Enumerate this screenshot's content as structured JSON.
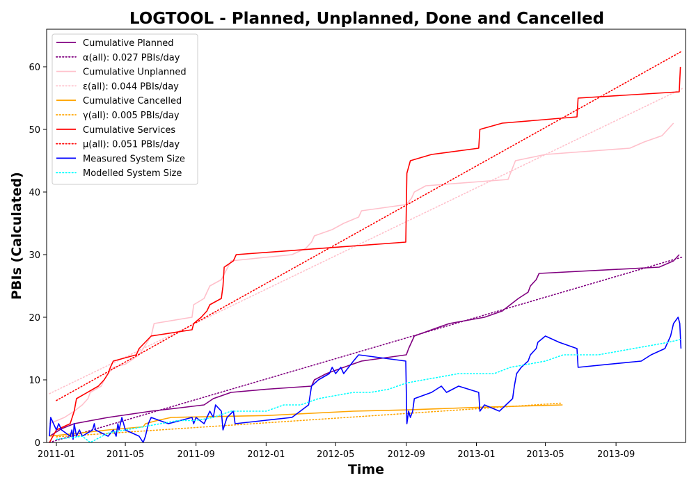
{
  "chart_data": {
    "type": "line",
    "title": "LOGTOOL - Planned, Unplanned, Done  and Cancelled",
    "xlabel": "Time",
    "ylabel": "PBIs (Calculated)",
    "xlim": [
      "2010-12-15",
      "2013-12-31"
    ],
    "ylim": [
      0,
      66
    ],
    "x_ticks": [
      "2011-01",
      "2011-05",
      "2011-09",
      "2012-01",
      "2012-05",
      "2012-09",
      "2013-01",
      "2013-05",
      "2013-09"
    ],
    "y_ticks": [
      0,
      10,
      20,
      30,
      40,
      50,
      60
    ],
    "grid": false,
    "legend_position": "top-left",
    "series": [
      {
        "name": "Cumulative Planned",
        "style": "solid",
        "color": "#800080",
        "points": [
          [
            "2010-12-20",
            1
          ],
          [
            "2011-01-10",
            2.2
          ],
          [
            "2011-02-01",
            3
          ],
          [
            "2011-04-01",
            4
          ],
          [
            "2011-06-15",
            5
          ],
          [
            "2011-08-01",
            5.5
          ],
          [
            "2011-09-15",
            6
          ],
          [
            "2011-10-01",
            7
          ],
          [
            "2011-11-01",
            8
          ],
          [
            "2012-01-01",
            8.5
          ],
          [
            "2012-03-20",
            9
          ],
          [
            "2012-03-25",
            10
          ],
          [
            "2012-04-15",
            11
          ],
          [
            "2012-05-15",
            12
          ],
          [
            "2012-06-15",
            13
          ],
          [
            "2012-09-01",
            14
          ],
          [
            "2012-09-05",
            15
          ],
          [
            "2012-09-15",
            17
          ],
          [
            "2012-10-15",
            18
          ],
          [
            "2012-11-15",
            19
          ],
          [
            "2013-01-15",
            20
          ],
          [
            "2013-02-15",
            21
          ],
          [
            "2013-03-01",
            22
          ],
          [
            "2013-03-15",
            23
          ],
          [
            "2013-04-01",
            24
          ],
          [
            "2013-04-05",
            25
          ],
          [
            "2013-04-15",
            26
          ],
          [
            "2013-04-20",
            27
          ],
          [
            "2013-11-15",
            28
          ],
          [
            "2013-12-10",
            29
          ],
          [
            "2013-12-20",
            30
          ]
        ]
      },
      {
        "name": "α(all): 0.027 PBIs/day",
        "style": "dotted",
        "color": "#800080",
        "points": [
          [
            "2010-12-20",
            -0.3
          ],
          [
            "2013-12-25",
            29.6
          ]
        ]
      },
      {
        "name": "Cumulative Unplanned",
        "style": "solid",
        "color": "#ffc0cb",
        "points": [
          [
            "2010-12-20",
            3
          ],
          [
            "2011-01-15",
            4
          ],
          [
            "2011-02-01",
            5
          ],
          [
            "2011-02-15",
            6
          ],
          [
            "2011-02-25",
            7
          ],
          [
            "2011-03-01",
            8
          ],
          [
            "2011-03-20",
            9
          ],
          [
            "2011-03-25",
            10
          ],
          [
            "2011-04-01",
            11
          ],
          [
            "2011-04-10",
            12
          ],
          [
            "2011-05-01",
            12.5
          ],
          [
            "2011-05-25",
            14
          ],
          [
            "2011-06-01",
            15
          ],
          [
            "2011-06-15",
            17
          ],
          [
            "2011-06-20",
            19
          ],
          [
            "2011-08-25",
            20
          ],
          [
            "2011-08-28",
            22
          ],
          [
            "2011-09-15",
            23
          ],
          [
            "2011-09-25",
            25
          ],
          [
            "2011-10-15",
            26
          ],
          [
            "2011-11-01",
            29
          ],
          [
            "2012-02-15",
            30
          ],
          [
            "2012-03-10",
            31
          ],
          [
            "2012-03-20",
            32
          ],
          [
            "2012-03-25",
            33
          ],
          [
            "2012-04-25",
            34
          ],
          [
            "2012-05-15",
            35
          ],
          [
            "2012-06-10",
            36
          ],
          [
            "2012-06-15",
            37
          ],
          [
            "2012-09-01",
            38
          ],
          [
            "2012-09-10",
            39
          ],
          [
            "2012-09-15",
            40
          ],
          [
            "2012-10-05",
            41
          ],
          [
            "2013-02-25",
            42
          ],
          [
            "2013-03-10",
            45
          ],
          [
            "2013-05-01",
            46
          ],
          [
            "2013-09-25",
            47
          ],
          [
            "2013-10-20",
            48
          ],
          [
            "2013-11-20",
            49
          ],
          [
            "2013-12-10",
            51
          ]
        ]
      },
      {
        "name": "ε(all): 0.044 PBIs/day",
        "style": "dotted",
        "color": "#ffc0cb",
        "points": [
          [
            "2010-12-20",
            7.8
          ],
          [
            "2013-12-25",
            56.5
          ]
        ]
      },
      {
        "name": "Cumulative Cancelled",
        "style": "solid",
        "color": "#ffa500",
        "points": [
          [
            "2010-12-20",
            1
          ],
          [
            "2011-01-10",
            1.2
          ],
          [
            "2011-02-10",
            1.5
          ],
          [
            "2011-04-01",
            2
          ],
          [
            "2011-06-01",
            2.5
          ],
          [
            "2011-06-05",
            3
          ],
          [
            "2011-06-25",
            3.5
          ],
          [
            "2011-07-20",
            4
          ],
          [
            "2012-01-01",
            4.3
          ],
          [
            "2012-06-01",
            5
          ],
          [
            "2012-09-01",
            5.2
          ],
          [
            "2013-01-01",
            5.6
          ],
          [
            "2013-05-31",
            6
          ]
        ]
      },
      {
        "name": "γ(all): 0.005 PBIs/day",
        "style": "dotted",
        "color": "#ffa500",
        "points": [
          [
            "2011-01-01",
            0.9
          ],
          [
            "2013-05-31",
            6.3
          ]
        ]
      },
      {
        "name": "Cumulative Services",
        "style": "solid",
        "color": "#ff0000",
        "points": [
          [
            "2010-12-20",
            0
          ],
          [
            "2011-01-01",
            2
          ],
          [
            "2011-01-25",
            3
          ],
          [
            "2011-02-01",
            5
          ],
          [
            "2011-02-05",
            7
          ],
          [
            "2011-03-15",
            9
          ],
          [
            "2011-03-25",
            10
          ],
          [
            "2011-04-01",
            11
          ],
          [
            "2011-04-05",
            12
          ],
          [
            "2011-04-10",
            13
          ],
          [
            "2011-05-20",
            14
          ],
          [
            "2011-05-25",
            15
          ],
          [
            "2011-06-15",
            17
          ],
          [
            "2011-08-25",
            18
          ],
          [
            "2011-08-28",
            19
          ],
          [
            "2011-09-10",
            20
          ],
          [
            "2011-09-20",
            21
          ],
          [
            "2011-09-25",
            22
          ],
          [
            "2011-10-15",
            23
          ],
          [
            "2011-10-18",
            25
          ],
          [
            "2011-10-20",
            28
          ],
          [
            "2011-11-05",
            29
          ],
          [
            "2011-11-10",
            30
          ],
          [
            "2012-08-31",
            32
          ],
          [
            "2012-09-02",
            43
          ],
          [
            "2012-09-08",
            45
          ],
          [
            "2012-10-15",
            46
          ],
          [
            "2013-01-05",
            47
          ],
          [
            "2013-01-07",
            50
          ],
          [
            "2013-02-15",
            51
          ],
          [
            "2013-06-25",
            52
          ],
          [
            "2013-06-27",
            55
          ],
          [
            "2013-12-20",
            56
          ],
          [
            "2013-12-22",
            60
          ]
        ]
      },
      {
        "name": "μ(all): 0.051 PBIs/day",
        "style": "dotted",
        "color": "#ff0000",
        "points": [
          [
            "2011-01-01",
            6.7
          ],
          [
            "2013-12-25",
            62.5
          ]
        ]
      },
      {
        "name": "Measured System Size",
        "style": "solid",
        "color": "#0000ff",
        "points": [
          [
            "2010-12-20",
            1
          ],
          [
            "2010-12-22",
            4
          ],
          [
            "2011-01-01",
            2
          ],
          [
            "2011-01-05",
            3
          ],
          [
            "2011-01-10",
            2
          ],
          [
            "2011-01-25",
            1
          ],
          [
            "2011-01-28",
            2
          ],
          [
            "2011-01-30",
            0.5
          ],
          [
            "2011-02-01",
            3
          ],
          [
            "2011-02-05",
            1
          ],
          [
            "2011-02-10",
            2
          ],
          [
            "2011-02-15",
            1
          ],
          [
            "2011-03-05",
            2
          ],
          [
            "2011-03-08",
            3
          ],
          [
            "2011-03-10",
            2
          ],
          [
            "2011-04-01",
            1
          ],
          [
            "2011-04-10",
            2
          ],
          [
            "2011-04-15",
            1
          ],
          [
            "2011-04-18",
            3
          ],
          [
            "2011-04-20",
            2
          ],
          [
            "2011-04-25",
            4
          ],
          [
            "2011-05-01",
            2
          ],
          [
            "2011-05-25",
            1
          ],
          [
            "2011-06-01",
            0
          ],
          [
            "2011-06-05",
            1
          ],
          [
            "2011-06-10",
            3
          ],
          [
            "2011-06-15",
            4
          ],
          [
            "2011-07-15",
            3
          ],
          [
            "2011-08-25",
            4
          ],
          [
            "2011-08-28",
            3
          ],
          [
            "2011-09-01",
            4
          ],
          [
            "2011-09-15",
            3
          ],
          [
            "2011-09-25",
            5
          ],
          [
            "2011-10-01",
            4
          ],
          [
            "2011-10-05",
            6
          ],
          [
            "2011-10-15",
            5
          ],
          [
            "2011-10-18",
            2
          ],
          [
            "2011-10-25",
            4
          ],
          [
            "2011-11-05",
            5
          ],
          [
            "2011-11-08",
            3
          ],
          [
            "2012-02-15",
            4
          ],
          [
            "2012-03-15",
            6
          ],
          [
            "2012-03-20",
            9
          ],
          [
            "2012-04-01",
            10
          ],
          [
            "2012-04-20",
            11
          ],
          [
            "2012-04-25",
            12
          ],
          [
            "2012-05-01",
            11
          ],
          [
            "2012-05-10",
            12
          ],
          [
            "2012-05-15",
            11
          ],
          [
            "2012-06-01",
            13
          ],
          [
            "2012-06-10",
            14
          ],
          [
            "2012-08-31",
            13
          ],
          [
            "2012-09-02",
            3
          ],
          [
            "2012-09-05",
            5
          ],
          [
            "2012-09-08",
            4
          ],
          [
            "2012-09-12",
            5
          ],
          [
            "2012-09-15",
            7
          ],
          [
            "2012-10-15",
            8
          ],
          [
            "2012-11-01",
            9
          ],
          [
            "2012-11-10",
            8
          ],
          [
            "2012-12-01",
            9
          ],
          [
            "2013-01-05",
            8
          ],
          [
            "2013-01-07",
            5
          ],
          [
            "2013-01-15",
            6
          ],
          [
            "2013-02-10",
            5
          ],
          [
            "2013-03-05",
            7
          ],
          [
            "2013-03-08",
            9
          ],
          [
            "2013-03-12",
            11
          ],
          [
            "2013-03-20",
            12
          ],
          [
            "2013-04-01",
            13
          ],
          [
            "2013-04-05",
            14
          ],
          [
            "2013-04-15",
            15
          ],
          [
            "2013-04-18",
            16
          ],
          [
            "2013-05-01",
            17
          ],
          [
            "2013-05-25",
            16
          ],
          [
            "2013-06-25",
            15
          ],
          [
            "2013-06-27",
            12
          ],
          [
            "2013-10-15",
            13
          ],
          [
            "2013-11-01",
            14
          ],
          [
            "2013-11-25",
            15
          ],
          [
            "2013-11-30",
            16
          ],
          [
            "2013-12-05",
            17
          ],
          [
            "2013-12-10",
            19
          ],
          [
            "2013-12-18",
            20
          ],
          [
            "2013-12-21",
            19
          ],
          [
            "2013-12-23",
            15
          ]
        ]
      },
      {
        "name": "Modelled System Size",
        "style": "dotted",
        "color": "#00ffff",
        "points": [
          [
            "2011-01-01",
            0.5
          ],
          [
            "2011-02-15",
            1
          ],
          [
            "2011-03-01",
            0
          ],
          [
            "2011-04-01",
            1.5
          ],
          [
            "2011-05-01",
            2
          ],
          [
            "2011-06-01",
            2.5
          ],
          [
            "2011-07-01",
            3
          ],
          [
            "2011-08-01",
            3.5
          ],
          [
            "2011-09-01",
            3.5
          ],
          [
            "2011-10-01",
            4
          ],
          [
            "2011-11-01",
            5
          ],
          [
            "2011-12-01",
            5
          ],
          [
            "2012-01-01",
            5
          ],
          [
            "2012-02-01",
            6
          ],
          [
            "2012-03-01",
            6
          ],
          [
            "2012-04-01",
            7
          ],
          [
            "2012-05-01",
            7.5
          ],
          [
            "2012-06-01",
            8
          ],
          [
            "2012-07-01",
            8
          ],
          [
            "2012-08-01",
            8.5
          ],
          [
            "2012-09-01",
            9.5
          ],
          [
            "2012-10-01",
            10
          ],
          [
            "2012-11-01",
            10.5
          ],
          [
            "2012-12-01",
            11
          ],
          [
            "2013-01-01",
            11
          ],
          [
            "2013-02-01",
            11
          ],
          [
            "2013-03-01",
            12
          ],
          [
            "2013-04-01",
            12.5
          ],
          [
            "2013-05-01",
            13
          ],
          [
            "2013-06-01",
            14
          ],
          [
            "2013-07-01",
            14
          ],
          [
            "2013-08-01",
            14
          ],
          [
            "2013-09-01",
            14.5
          ],
          [
            "2013-10-01",
            15
          ],
          [
            "2013-11-01",
            15.5
          ],
          [
            "2013-12-01",
            16
          ],
          [
            "2013-12-25",
            16.5
          ]
        ]
      }
    ]
  }
}
